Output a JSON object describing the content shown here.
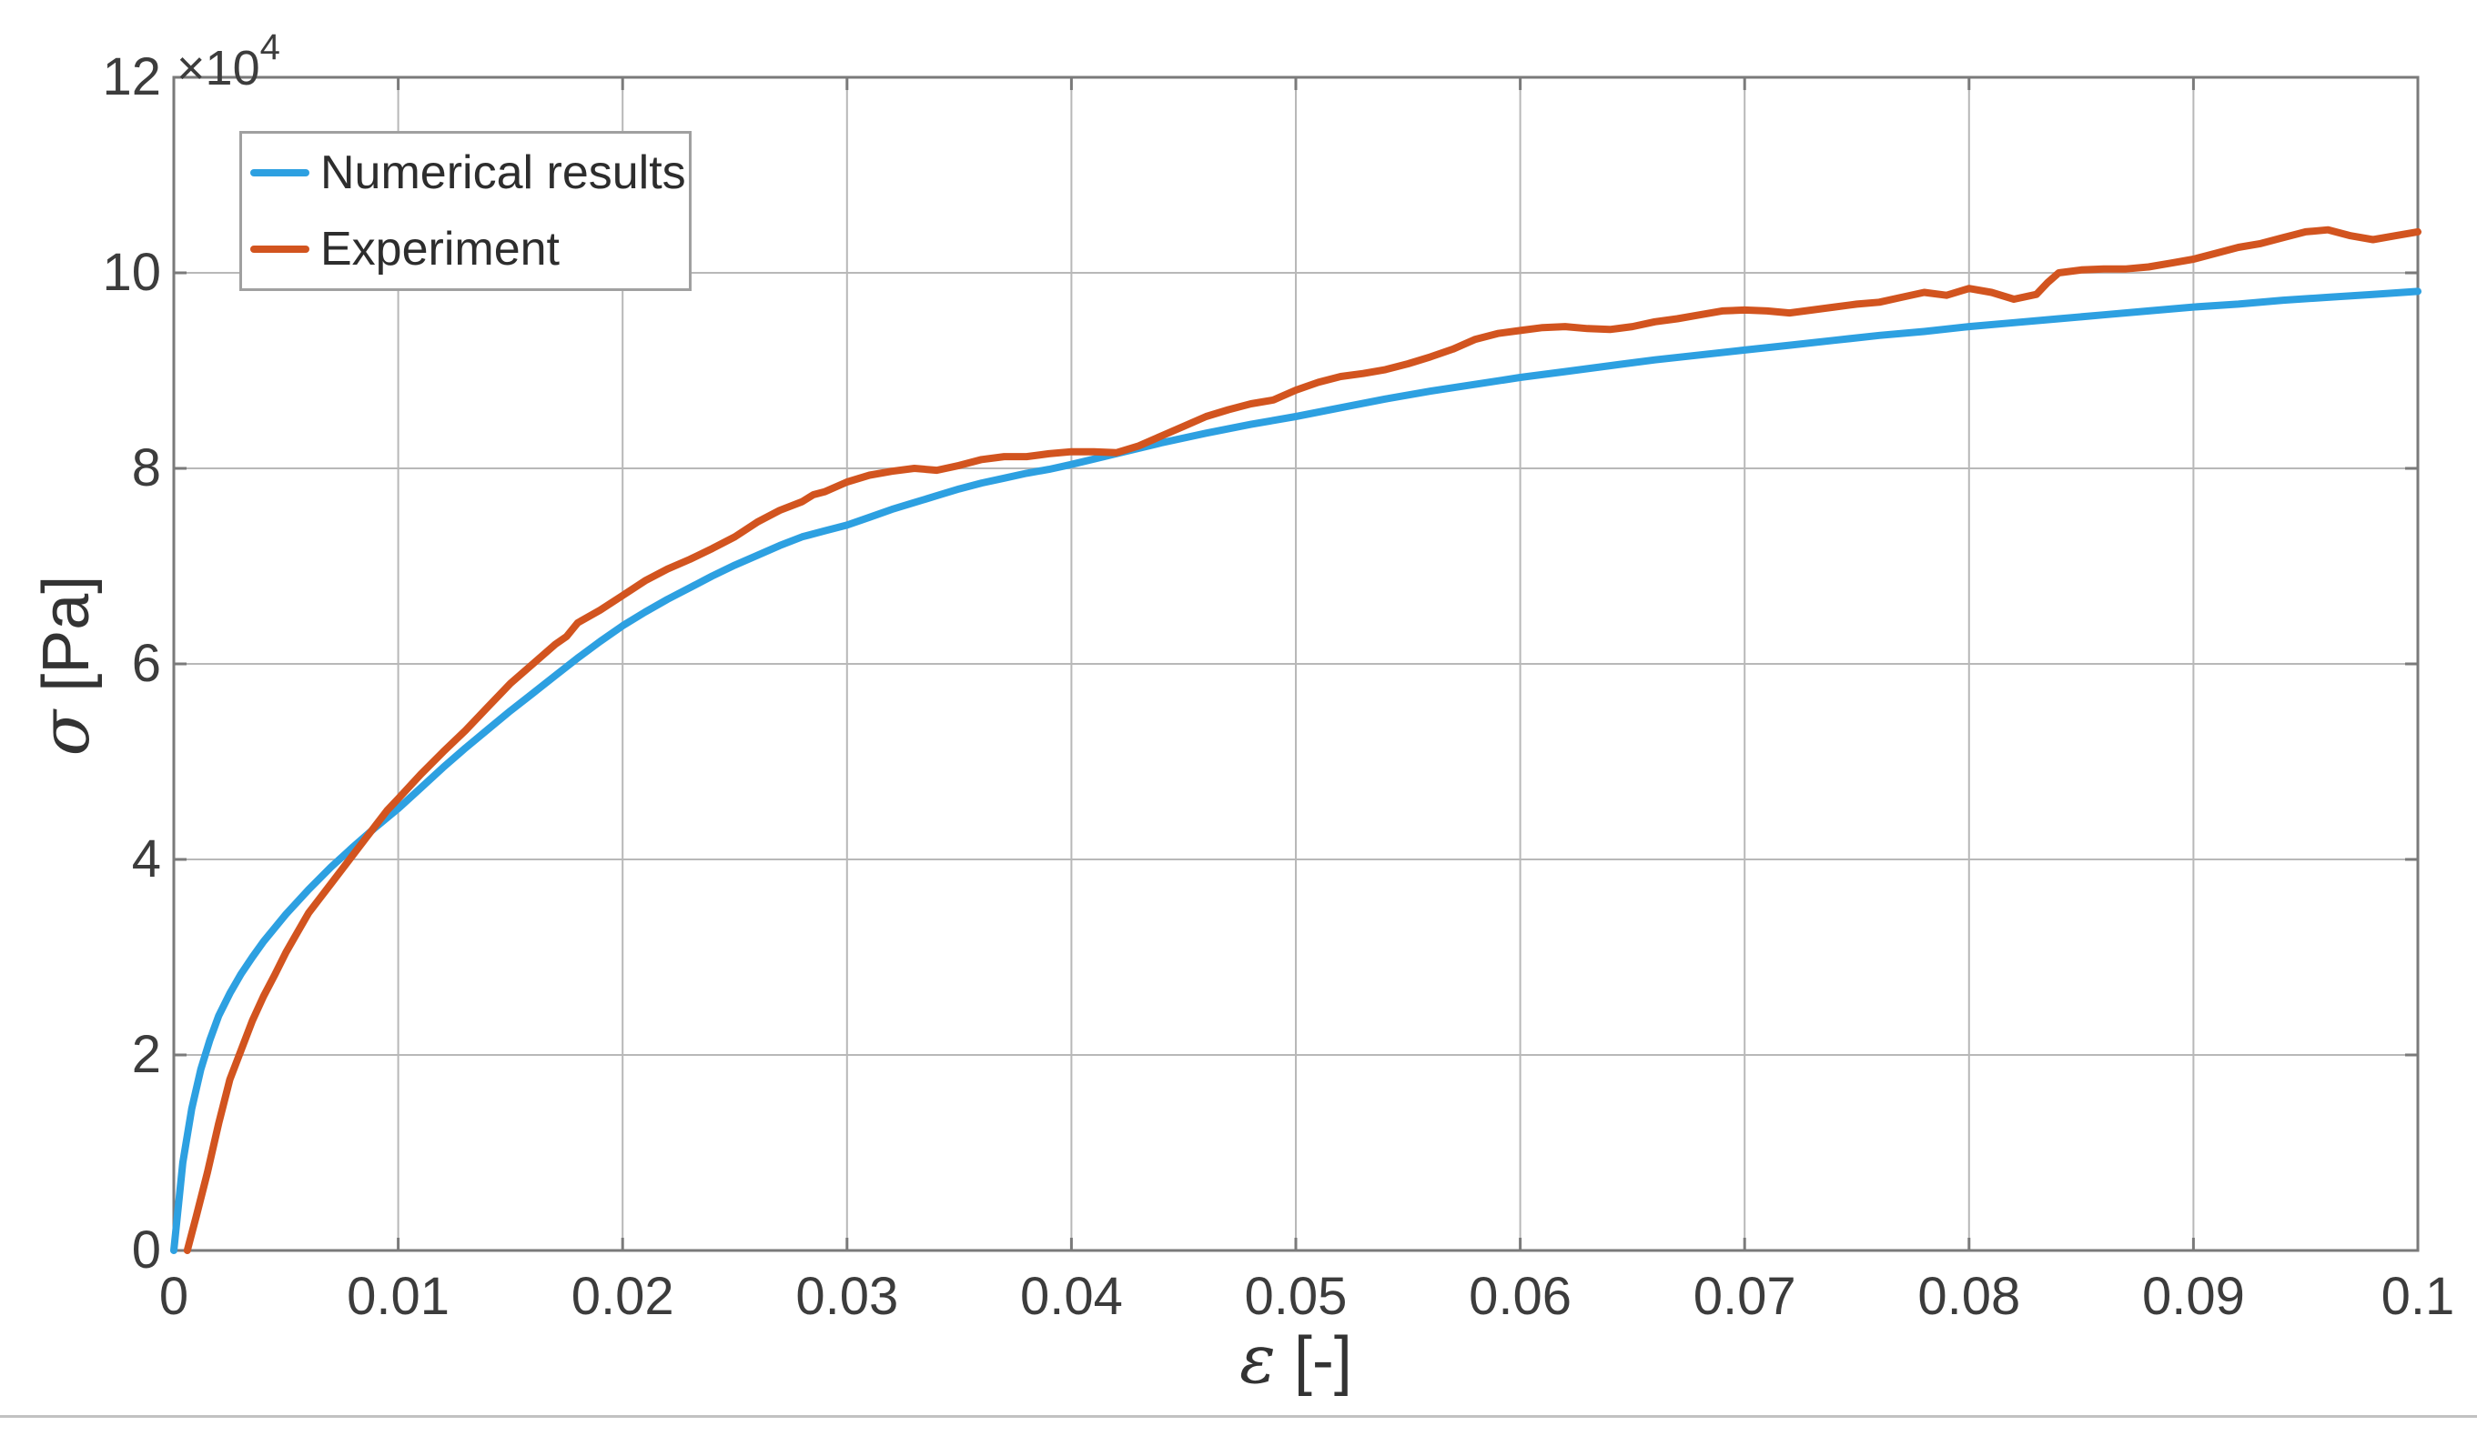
{
  "figure": {
    "exponent": {
      "base": "×10",
      "power": "4"
    },
    "x_axis": {
      "symbol": "ε",
      "unit": "[-]"
    },
    "y_axis": {
      "symbol": "σ",
      "unit": "[Pa]"
    }
  },
  "legend": {
    "position": "top-left",
    "items": [
      {
        "label": "Numerical results",
        "color": "#2da0e1"
      },
      {
        "label": "Experiment",
        "color": "#d2541f"
      }
    ]
  },
  "colors": {
    "background": "#ffffff",
    "gridline": "#b8b8b8",
    "axis_box": "#7a7a7a",
    "tick_text": "#3c3c3c",
    "numerical_line": "#2da0e1",
    "experiment_line": "#d2541f",
    "page_divider": "#c2c2c2"
  },
  "chart_data": {
    "type": "line",
    "title": "",
    "xlabel": "ε [-]",
    "ylabel": "σ [Pa]",
    "y_multiplier_label": "×10⁴",
    "grid": true,
    "legend_position": "top-left",
    "xlim": [
      0,
      0.1
    ],
    "ylim": [
      0,
      120000
    ],
    "x_ticks": [
      0,
      0.01,
      0.02,
      0.03,
      0.04,
      0.05,
      0.06,
      0.07,
      0.08,
      0.09,
      0.1
    ],
    "x_tick_labels": [
      "0",
      "0.01",
      "0.02",
      "0.03",
      "0.04",
      "0.05",
      "0.06",
      "0.07",
      "0.08",
      "0.09",
      "0.1"
    ],
    "y_ticks": [
      0,
      20000,
      40000,
      60000,
      80000,
      100000,
      120000
    ],
    "y_tick_labels": [
      "0",
      "2",
      "4",
      "6",
      "8",
      "10",
      "12"
    ],
    "series": [
      {
        "name": "Numerical results",
        "color": "#2da0e1",
        "points": [
          [
            0,
            0
          ],
          [
            0.0004,
            9000
          ],
          [
            0.0008,
            14500
          ],
          [
            0.0012,
            18500
          ],
          [
            0.0016,
            21500
          ],
          [
            0.002,
            24000
          ],
          [
            0.0025,
            26300
          ],
          [
            0.003,
            28300
          ],
          [
            0.0035,
            30000
          ],
          [
            0.004,
            31600
          ],
          [
            0.005,
            34400
          ],
          [
            0.006,
            36900
          ],
          [
            0.007,
            39200
          ],
          [
            0.008,
            41300
          ],
          [
            0.009,
            43300
          ],
          [
            0.01,
            45200
          ],
          [
            0.011,
            47300
          ],
          [
            0.012,
            49400
          ],
          [
            0.013,
            51400
          ],
          [
            0.014,
            53300
          ],
          [
            0.015,
            55200
          ],
          [
            0.016,
            57000
          ],
          [
            0.017,
            58800
          ],
          [
            0.018,
            60600
          ],
          [
            0.019,
            62300
          ],
          [
            0.02,
            63900
          ],
          [
            0.021,
            65300
          ],
          [
            0.022,
            66600
          ],
          [
            0.023,
            67800
          ],
          [
            0.024,
            69000
          ],
          [
            0.025,
            70100
          ],
          [
            0.026,
            71100
          ],
          [
            0.027,
            72100
          ],
          [
            0.028,
            73000
          ],
          [
            0.029,
            73600
          ],
          [
            0.03,
            74200
          ],
          [
            0.031,
            75000
          ],
          [
            0.032,
            75800
          ],
          [
            0.033,
            76500
          ],
          [
            0.034,
            77200
          ],
          [
            0.035,
            77900
          ],
          [
            0.036,
            78500
          ],
          [
            0.037,
            79000
          ],
          [
            0.038,
            79500
          ],
          [
            0.039,
            79900
          ],
          [
            0.04,
            80400
          ],
          [
            0.042,
            81500
          ],
          [
            0.044,
            82600
          ],
          [
            0.046,
            83600
          ],
          [
            0.048,
            84500
          ],
          [
            0.05,
            85300
          ],
          [
            0.052,
            86200
          ],
          [
            0.054,
            87100
          ],
          [
            0.056,
            87900
          ],
          [
            0.058,
            88600
          ],
          [
            0.06,
            89300
          ],
          [
            0.062,
            89900
          ],
          [
            0.064,
            90500
          ],
          [
            0.066,
            91100
          ],
          [
            0.068,
            91600
          ],
          [
            0.07,
            92100
          ],
          [
            0.072,
            92600
          ],
          [
            0.074,
            93100
          ],
          [
            0.076,
            93600
          ],
          [
            0.078,
            94000
          ],
          [
            0.08,
            94500
          ],
          [
            0.082,
            94900
          ],
          [
            0.084,
            95300
          ],
          [
            0.086,
            95700
          ],
          [
            0.088,
            96100
          ],
          [
            0.09,
            96500
          ],
          [
            0.092,
            96800
          ],
          [
            0.094,
            97200
          ],
          [
            0.096,
            97500
          ],
          [
            0.098,
            97800
          ],
          [
            0.1,
            98100
          ]
        ]
      },
      {
        "name": "Experiment",
        "color": "#d2541f",
        "points": [
          [
            0.0006,
            0
          ],
          [
            0.001,
            3500
          ],
          [
            0.0015,
            8000
          ],
          [
            0.002,
            13000
          ],
          [
            0.0025,
            17500
          ],
          [
            0.003,
            20500
          ],
          [
            0.0035,
            23500
          ],
          [
            0.004,
            26000
          ],
          [
            0.0045,
            28200
          ],
          [
            0.005,
            30500
          ],
          [
            0.0055,
            32500
          ],
          [
            0.006,
            34500
          ],
          [
            0.0065,
            36000
          ],
          [
            0.007,
            37500
          ],
          [
            0.0075,
            39000
          ],
          [
            0.008,
            40500
          ],
          [
            0.0085,
            42000
          ],
          [
            0.009,
            43500
          ],
          [
            0.0095,
            45000
          ],
          [
            0.01,
            46200
          ],
          [
            0.011,
            48700
          ],
          [
            0.012,
            51000
          ],
          [
            0.013,
            53200
          ],
          [
            0.014,
            55600
          ],
          [
            0.015,
            58000
          ],
          [
            0.016,
            60000
          ],
          [
            0.017,
            62000
          ],
          [
            0.0175,
            62800
          ],
          [
            0.018,
            64200
          ],
          [
            0.019,
            65500
          ],
          [
            0.02,
            67000
          ],
          [
            0.021,
            68500
          ],
          [
            0.022,
            69700
          ],
          [
            0.023,
            70700
          ],
          [
            0.024,
            71800
          ],
          [
            0.025,
            73000
          ],
          [
            0.026,
            74500
          ],
          [
            0.027,
            75700
          ],
          [
            0.028,
            76600
          ],
          [
            0.0285,
            77300
          ],
          [
            0.029,
            77600
          ],
          [
            0.03,
            78600
          ],
          [
            0.031,
            79300
          ],
          [
            0.032,
            79700
          ],
          [
            0.033,
            80000
          ],
          [
            0.034,
            79800
          ],
          [
            0.035,
            80300
          ],
          [
            0.036,
            80900
          ],
          [
            0.037,
            81200
          ],
          [
            0.038,
            81200
          ],
          [
            0.039,
            81500
          ],
          [
            0.04,
            81700
          ],
          [
            0.041,
            81700
          ],
          [
            0.042,
            81600
          ],
          [
            0.043,
            82300
          ],
          [
            0.044,
            83300
          ],
          [
            0.045,
            84300
          ],
          [
            0.046,
            85300
          ],
          [
            0.047,
            86000
          ],
          [
            0.048,
            86600
          ],
          [
            0.049,
            87000
          ],
          [
            0.05,
            88000
          ],
          [
            0.051,
            88800
          ],
          [
            0.052,
            89400
          ],
          [
            0.053,
            89700
          ],
          [
            0.054,
            90100
          ],
          [
            0.055,
            90700
          ],
          [
            0.056,
            91400
          ],
          [
            0.057,
            92200
          ],
          [
            0.058,
            93200
          ],
          [
            0.059,
            93800
          ],
          [
            0.06,
            94100
          ],
          [
            0.061,
            94400
          ],
          [
            0.062,
            94500
          ],
          [
            0.063,
            94300
          ],
          [
            0.064,
            94200
          ],
          [
            0.065,
            94500
          ],
          [
            0.066,
            95000
          ],
          [
            0.067,
            95300
          ],
          [
            0.068,
            95700
          ],
          [
            0.069,
            96100
          ],
          [
            0.07,
            96200
          ],
          [
            0.071,
            96100
          ],
          [
            0.072,
            95900
          ],
          [
            0.073,
            96200
          ],
          [
            0.074,
            96500
          ],
          [
            0.075,
            96800
          ],
          [
            0.076,
            97000
          ],
          [
            0.077,
            97500
          ],
          [
            0.078,
            98000
          ],
          [
            0.079,
            97700
          ],
          [
            0.08,
            98400
          ],
          [
            0.081,
            98000
          ],
          [
            0.082,
            97300
          ],
          [
            0.083,
            97800
          ],
          [
            0.0835,
            99000
          ],
          [
            0.084,
            100000
          ],
          [
            0.085,
            100300
          ],
          [
            0.086,
            100400
          ],
          [
            0.087,
            100400
          ],
          [
            0.088,
            100600
          ],
          [
            0.089,
            101000
          ],
          [
            0.09,
            101400
          ],
          [
            0.091,
            102000
          ],
          [
            0.092,
            102600
          ],
          [
            0.093,
            103000
          ],
          [
            0.094,
            103600
          ],
          [
            0.095,
            104200
          ],
          [
            0.096,
            104400
          ],
          [
            0.097,
            103800
          ],
          [
            0.098,
            103400
          ],
          [
            0.099,
            103800
          ],
          [
            0.1,
            104200
          ]
        ]
      }
    ]
  }
}
